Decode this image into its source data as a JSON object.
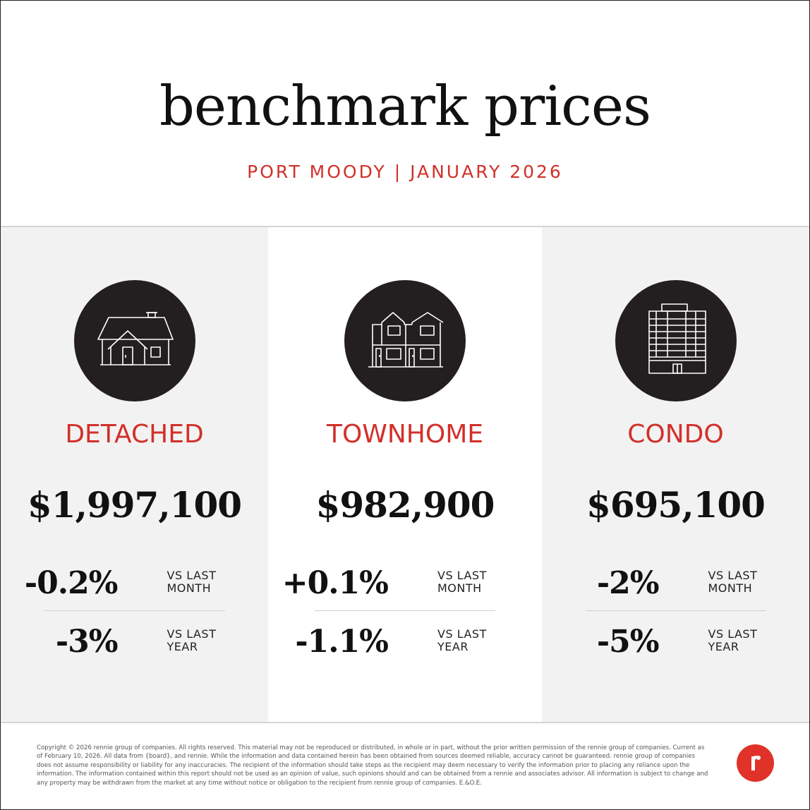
{
  "header": {
    "title": "benchmark prices",
    "subtitle": "PORT MOODY | JANUARY 2026"
  },
  "colors": {
    "accent": "#d2302a",
    "icon_circle": "#231f20",
    "panel_gray": "#f2f2f2",
    "logo": "#e03228"
  },
  "property_types": [
    {
      "icon": "detached-house-icon",
      "label": "DETACHED",
      "price": "$1,997,100",
      "vs_month": "-0.2%",
      "vs_year": "-3%"
    },
    {
      "icon": "townhome-icon",
      "label": "TOWNHOME",
      "price": "$982,900",
      "vs_month": "+0.1%",
      "vs_year": "-1.1%"
    },
    {
      "icon": "condo-building-icon",
      "label": "CONDO",
      "price": "$695,100",
      "vs_month": "-2%",
      "vs_year": "-5%"
    }
  ],
  "labels": {
    "vs_last": "VS LAST",
    "month": "MONTH",
    "year": "YEAR"
  },
  "footer": {
    "disclaimer": "Copyright © 2026 rennie group of companies. All rights reserved. This material may not be reproduced or distributed, in whole or in part, without the prior written permission of the rennie group of companies. Current as of February 10, 2026. All data from {board}, and rennie. While the information and data contained herein has been obtained from sources deemed reliable, accuracy cannot be guaranteed. rennie group of companies does not assume responsibility or liability for any inaccuracies. The recipient of the information should take steps as the recipient may deem necessary to verify the information prior to placing any reliance upon the information. The information contained within this report should not be used as an opinion of value, such opinions should and can be obtained from a rennie and associates advisor. All information is subject to change and any property may be withdrawn from the market at any time without notice or obligation to the recipient from rennie group of companies. E.&O.E.",
    "logo_icon": "rennie-logo-icon"
  }
}
